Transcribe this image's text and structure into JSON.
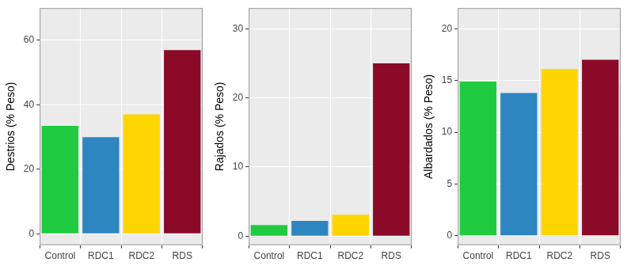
{
  "chart_data": [
    {
      "type": "bar",
      "y_label": "Destrios (% Peso)",
      "categories": [
        "Control",
        "RDC1",
        "RDC2",
        "RDS"
      ],
      "values": [
        33.5,
        30,
        37,
        57
      ],
      "colors": [
        "#1fcc3f",
        "#2e86c1",
        "#ffd500",
        "#8b0a28"
      ],
      "ylim": [
        -3.5,
        70
      ],
      "yticks": [
        0,
        20,
        40,
        60
      ],
      "grid": true
    },
    {
      "type": "bar",
      "y_label": "Rajados (% Peso)",
      "categories": [
        "Control",
        "RDC1",
        "RDC2",
        "RDS"
      ],
      "values": [
        1.6,
        2.2,
        3.1,
        25
      ],
      "colors": [
        "#1fcc3f",
        "#2e86c1",
        "#ffd500",
        "#8b0a28"
      ],
      "ylim": [
        -1.3,
        33
      ],
      "yticks": [
        0,
        10,
        20,
        30
      ],
      "grid": true
    },
    {
      "type": "bar",
      "y_label": "Albardados (% Peso)",
      "categories": [
        "Control",
        "RDC1",
        "RDC2",
        "RDS"
      ],
      "values": [
        14.9,
        13.8,
        16.1,
        17
      ],
      "colors": [
        "#1fcc3f",
        "#2e86c1",
        "#ffd500",
        "#8b0a28"
      ],
      "ylim": [
        -0.9,
        22
      ],
      "yticks": [
        0,
        5,
        10,
        15,
        20
      ],
      "grid": true
    }
  ]
}
